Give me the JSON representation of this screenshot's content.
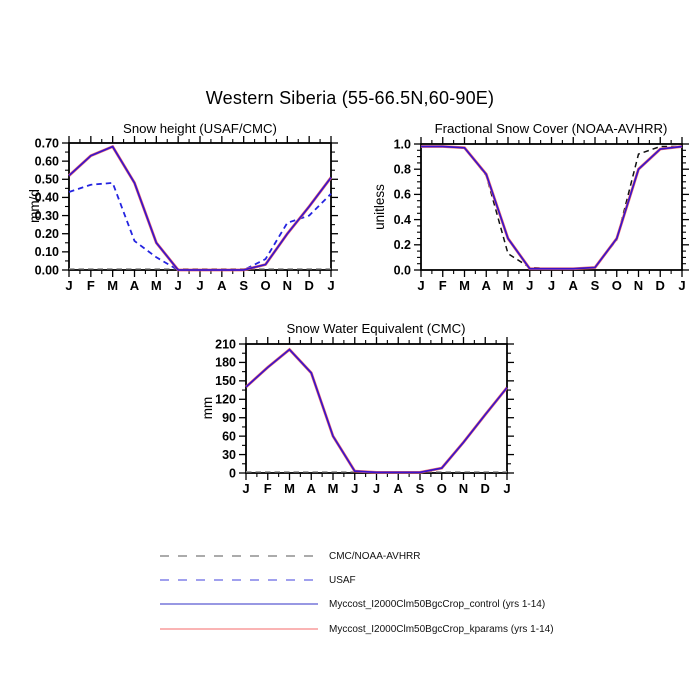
{
  "page_title": "Western Siberia (55-66.5N,60-90E)",
  "months": [
    "J",
    "F",
    "M",
    "A",
    "M",
    "J",
    "J",
    "A",
    "S",
    "O",
    "N",
    "D",
    "J"
  ],
  "chart_data": [
    {
      "type": "line",
      "title": "Snow height (USAF/CMC)",
      "ylabel": "mm/d",
      "xlabel": "",
      "categories": [
        "J",
        "F",
        "M",
        "A",
        "M",
        "J",
        "J",
        "A",
        "S",
        "O",
        "N",
        "D",
        "J"
      ],
      "ylim": [
        0,
        0.7
      ],
      "ytick_labels": [
        "0.00",
        "0.10",
        "0.20",
        "0.30",
        "0.40",
        "0.50",
        "0.60",
        "0.70"
      ],
      "grid": false,
      "series": [
        {
          "name": "CMC/NOAA-AVHRR",
          "style": "dashed",
          "color": "#999999",
          "width": 1.4,
          "values": [
            0,
            0,
            0,
            0,
            0,
            0,
            0,
            0,
            0,
            0,
            0,
            0,
            0
          ]
        },
        {
          "name": "USAF",
          "style": "dashed",
          "color": "#2424e0",
          "width": 1.8,
          "values": [
            0.43,
            0.47,
            0.48,
            0.16,
            0.07,
            0.0,
            0.0,
            0.0,
            0.0,
            0.06,
            0.26,
            0.3,
            0.42
          ]
        },
        {
          "name": "Myccost_I2000Clm50BgcCrop_kparams (yrs 1-14)",
          "style": "solid",
          "color": "#ee6e6e",
          "width": 2.8,
          "values": [
            0.52,
            0.63,
            0.68,
            0.48,
            0.15,
            0.0,
            0.0,
            0.0,
            0.0,
            0.03,
            0.2,
            0.35,
            0.51
          ]
        },
        {
          "name": "Myccost_I2000Clm50BgcCrop_control (yrs 1-14)",
          "style": "solid",
          "color": "#3a14cc",
          "width": 1.7,
          "values": [
            0.52,
            0.63,
            0.68,
            0.48,
            0.15,
            0.0,
            0.0,
            0.0,
            0.0,
            0.03,
            0.2,
            0.35,
            0.51
          ]
        }
      ]
    },
    {
      "type": "line",
      "title": "Fractional Snow Cover (NOAA-AVHRR)",
      "ylabel": "unitless",
      "xlabel": "",
      "categories": [
        "J",
        "F",
        "M",
        "A",
        "M",
        "J",
        "J",
        "A",
        "S",
        "O",
        "N",
        "D",
        "J"
      ],
      "ylim": [
        0,
        1.0
      ],
      "ytick_labels": [
        "0.0",
        "0.2",
        "0.4",
        "0.6",
        "0.8",
        "1.0"
      ],
      "grid": false,
      "series": [
        {
          "name": "CMC/NOAA-AVHRR",
          "style": "dashed",
          "color": "#111111",
          "width": 1.5,
          "values": [
            0.98,
            0.98,
            0.97,
            0.75,
            0.13,
            0.02,
            0.01,
            0.01,
            0.02,
            0.24,
            0.92,
            0.98,
            0.98
          ]
        },
        {
          "name": "Myccost_I2000Clm50BgcCrop_kparams (yrs 1-14)",
          "style": "solid",
          "color": "#ee6e6e",
          "width": 2.8,
          "values": [
            0.98,
            0.98,
            0.97,
            0.76,
            0.25,
            0.01,
            0.01,
            0.01,
            0.02,
            0.25,
            0.8,
            0.96,
            0.98
          ]
        },
        {
          "name": "Myccost_I2000Clm50BgcCrop_control (yrs 1-14)",
          "style": "solid",
          "color": "#3a14cc",
          "width": 1.7,
          "values": [
            0.98,
            0.98,
            0.97,
            0.76,
            0.25,
            0.01,
            0.01,
            0.01,
            0.02,
            0.25,
            0.8,
            0.96,
            0.98
          ]
        }
      ]
    },
    {
      "type": "line",
      "title": "Snow Water Equivalent (CMC)",
      "ylabel": "mm",
      "xlabel": "",
      "categories": [
        "J",
        "F",
        "M",
        "A",
        "M",
        "J",
        "J",
        "A",
        "S",
        "O",
        "N",
        "D",
        "J"
      ],
      "ylim": [
        0,
        210
      ],
      "ytick_labels": [
        "0",
        "30",
        "60",
        "90",
        "120",
        "150",
        "180",
        "210"
      ],
      "grid": false,
      "series": [
        {
          "name": "CMC/NOAA-AVHRR",
          "style": "dashed",
          "color": "#999999",
          "width": 1.4,
          "values": [
            0,
            0,
            0,
            0,
            0,
            0,
            0,
            0,
            0,
            0,
            0,
            0,
            0
          ]
        },
        {
          "name": "Myccost_I2000Clm50BgcCrop_kparams (yrs 1-14)",
          "style": "solid",
          "color": "#ee6e6e",
          "width": 2.8,
          "values": [
            140,
            172,
            201,
            163,
            60,
            3,
            1,
            1,
            1,
            8,
            50,
            95,
            139
          ]
        },
        {
          "name": "Myccost_I2000Clm50BgcCrop_control (yrs 1-14)",
          "style": "solid",
          "color": "#3a14cc",
          "width": 1.7,
          "values": [
            140,
            172,
            201,
            163,
            60,
            3,
            1,
            1,
            1,
            8,
            50,
            95,
            139
          ]
        }
      ]
    }
  ],
  "legend": {
    "position": "bottom",
    "items": [
      {
        "label": "CMC/NOAA-AVHRR",
        "color": "#8f8f8f",
        "dash": true,
        "width": 1.4
      },
      {
        "label": "USAF",
        "color": "#8080e8",
        "dash": true,
        "width": 1.4
      },
      {
        "label": "Myccost_I2000Clm50BgcCrop_control (yrs 1-14)",
        "color": "#5a5ad2",
        "dash": false,
        "width": 1.2
      },
      {
        "label": "Myccost_I2000Clm50BgcCrop_kparams (yrs 1-14)",
        "color": "#f89b9b",
        "dash": false,
        "width": 1.6
      }
    ]
  }
}
